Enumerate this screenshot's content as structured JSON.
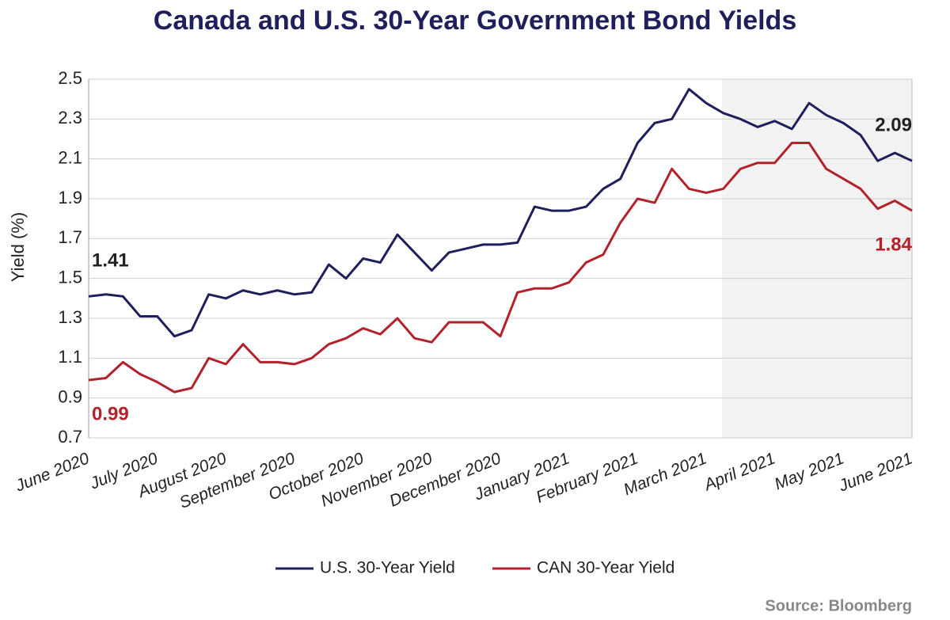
{
  "chart_data": {
    "type": "line",
    "title": "Canada and U.S. 30-Year Government Bond Yields",
    "y_label": "Yield (%)",
    "source": "Source: Bloomberg",
    "categories": [
      "June 2020",
      null,
      null,
      null,
      "July 2020",
      null,
      null,
      null,
      "August 2020",
      null,
      null,
      null,
      "September 2020",
      null,
      null,
      null,
      "October 2020",
      null,
      null,
      null,
      "November 2020",
      null,
      null,
      null,
      "December 2020",
      null,
      null,
      null,
      "January 2021",
      null,
      null,
      null,
      "February 2021",
      null,
      null,
      null,
      "March 2021",
      null,
      null,
      null,
      "April 2021",
      null,
      null,
      null,
      "May 2021",
      null,
      null,
      null,
      "June 2021"
    ],
    "series": [
      {
        "name": "U.S. 30-Year Yield",
        "color": "#1f1f5c",
        "values": [
          1.41,
          1.42,
          1.41,
          1.31,
          1.31,
          1.21,
          1.24,
          1.42,
          1.4,
          1.44,
          1.42,
          1.44,
          1.42,
          1.43,
          1.57,
          1.5,
          1.6,
          1.58,
          1.72,
          1.63,
          1.54,
          1.63,
          1.65,
          1.67,
          1.67,
          1.68,
          1.86,
          1.84,
          1.84,
          1.86,
          1.95,
          2.0,
          2.18,
          2.28,
          2.3,
          2.45,
          2.38,
          2.33,
          2.3,
          2.26,
          2.29,
          2.25,
          2.38,
          2.32,
          2.28,
          2.22,
          2.09,
          2.13,
          2.09
        ]
      },
      {
        "name": "CAN 30-Year Yield",
        "color": "#b3212b",
        "values": [
          0.99,
          1.0,
          1.08,
          1.02,
          0.98,
          0.93,
          0.95,
          1.1,
          1.07,
          1.17,
          1.08,
          1.08,
          1.07,
          1.1,
          1.17,
          1.2,
          1.25,
          1.22,
          1.3,
          1.2,
          1.18,
          1.28,
          1.28,
          1.28,
          1.21,
          1.43,
          1.45,
          1.45,
          1.48,
          1.58,
          1.62,
          1.78,
          1.9,
          1.88,
          2.05,
          1.95,
          1.93,
          1.95,
          2.05,
          2.08,
          2.08,
          2.18,
          2.18,
          2.05,
          2.0,
          1.95,
          1.85,
          1.89,
          1.84
        ]
      }
    ],
    "ylim": [
      0.7,
      2.5
    ],
    "yticks": [
      0.7,
      0.9,
      1.1,
      1.3,
      1.5,
      1.7,
      1.9,
      2.1,
      2.3,
      2.5
    ],
    "grid": true
  }
}
